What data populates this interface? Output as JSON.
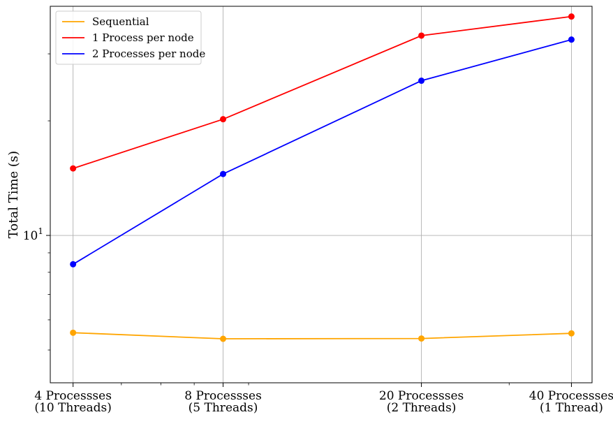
{
  "chart_data": {
    "type": "line",
    "title": "",
    "xlabel": "",
    "ylabel": "Total Time (s)",
    "yscale": "log",
    "ylim": [
      4.1,
      40
    ],
    "xscale": "log",
    "x": [
      4,
      8,
      20,
      40
    ],
    "xlim": [
      3.6,
      44
    ],
    "x_tick_labels": [
      [
        "4 Processses",
        "(10 Threads)"
      ],
      [
        "8 Processses",
        "(5 Threads)"
      ],
      [
        "20 Processses",
        "(2 Threads)"
      ],
      [
        "40 Processses",
        "(1 Thread)"
      ]
    ],
    "y_tick_label": {
      "value": 10,
      "base": "10",
      "exponent": "1"
    },
    "grid": true,
    "legend_position": "top-left",
    "series": [
      {
        "name": "Sequential",
        "color": "#ffa500",
        "values": [
          5.55,
          5.35,
          5.36,
          5.53
        ]
      },
      {
        "name": "1 Process per node",
        "color": "#ff0000",
        "values": [
          15.0,
          20.2,
          33.5,
          37.6
        ]
      },
      {
        "name": "2 Processes per node",
        "color": "#0000ff",
        "values": [
          8.4,
          14.5,
          25.5,
          32.7
        ]
      }
    ]
  }
}
